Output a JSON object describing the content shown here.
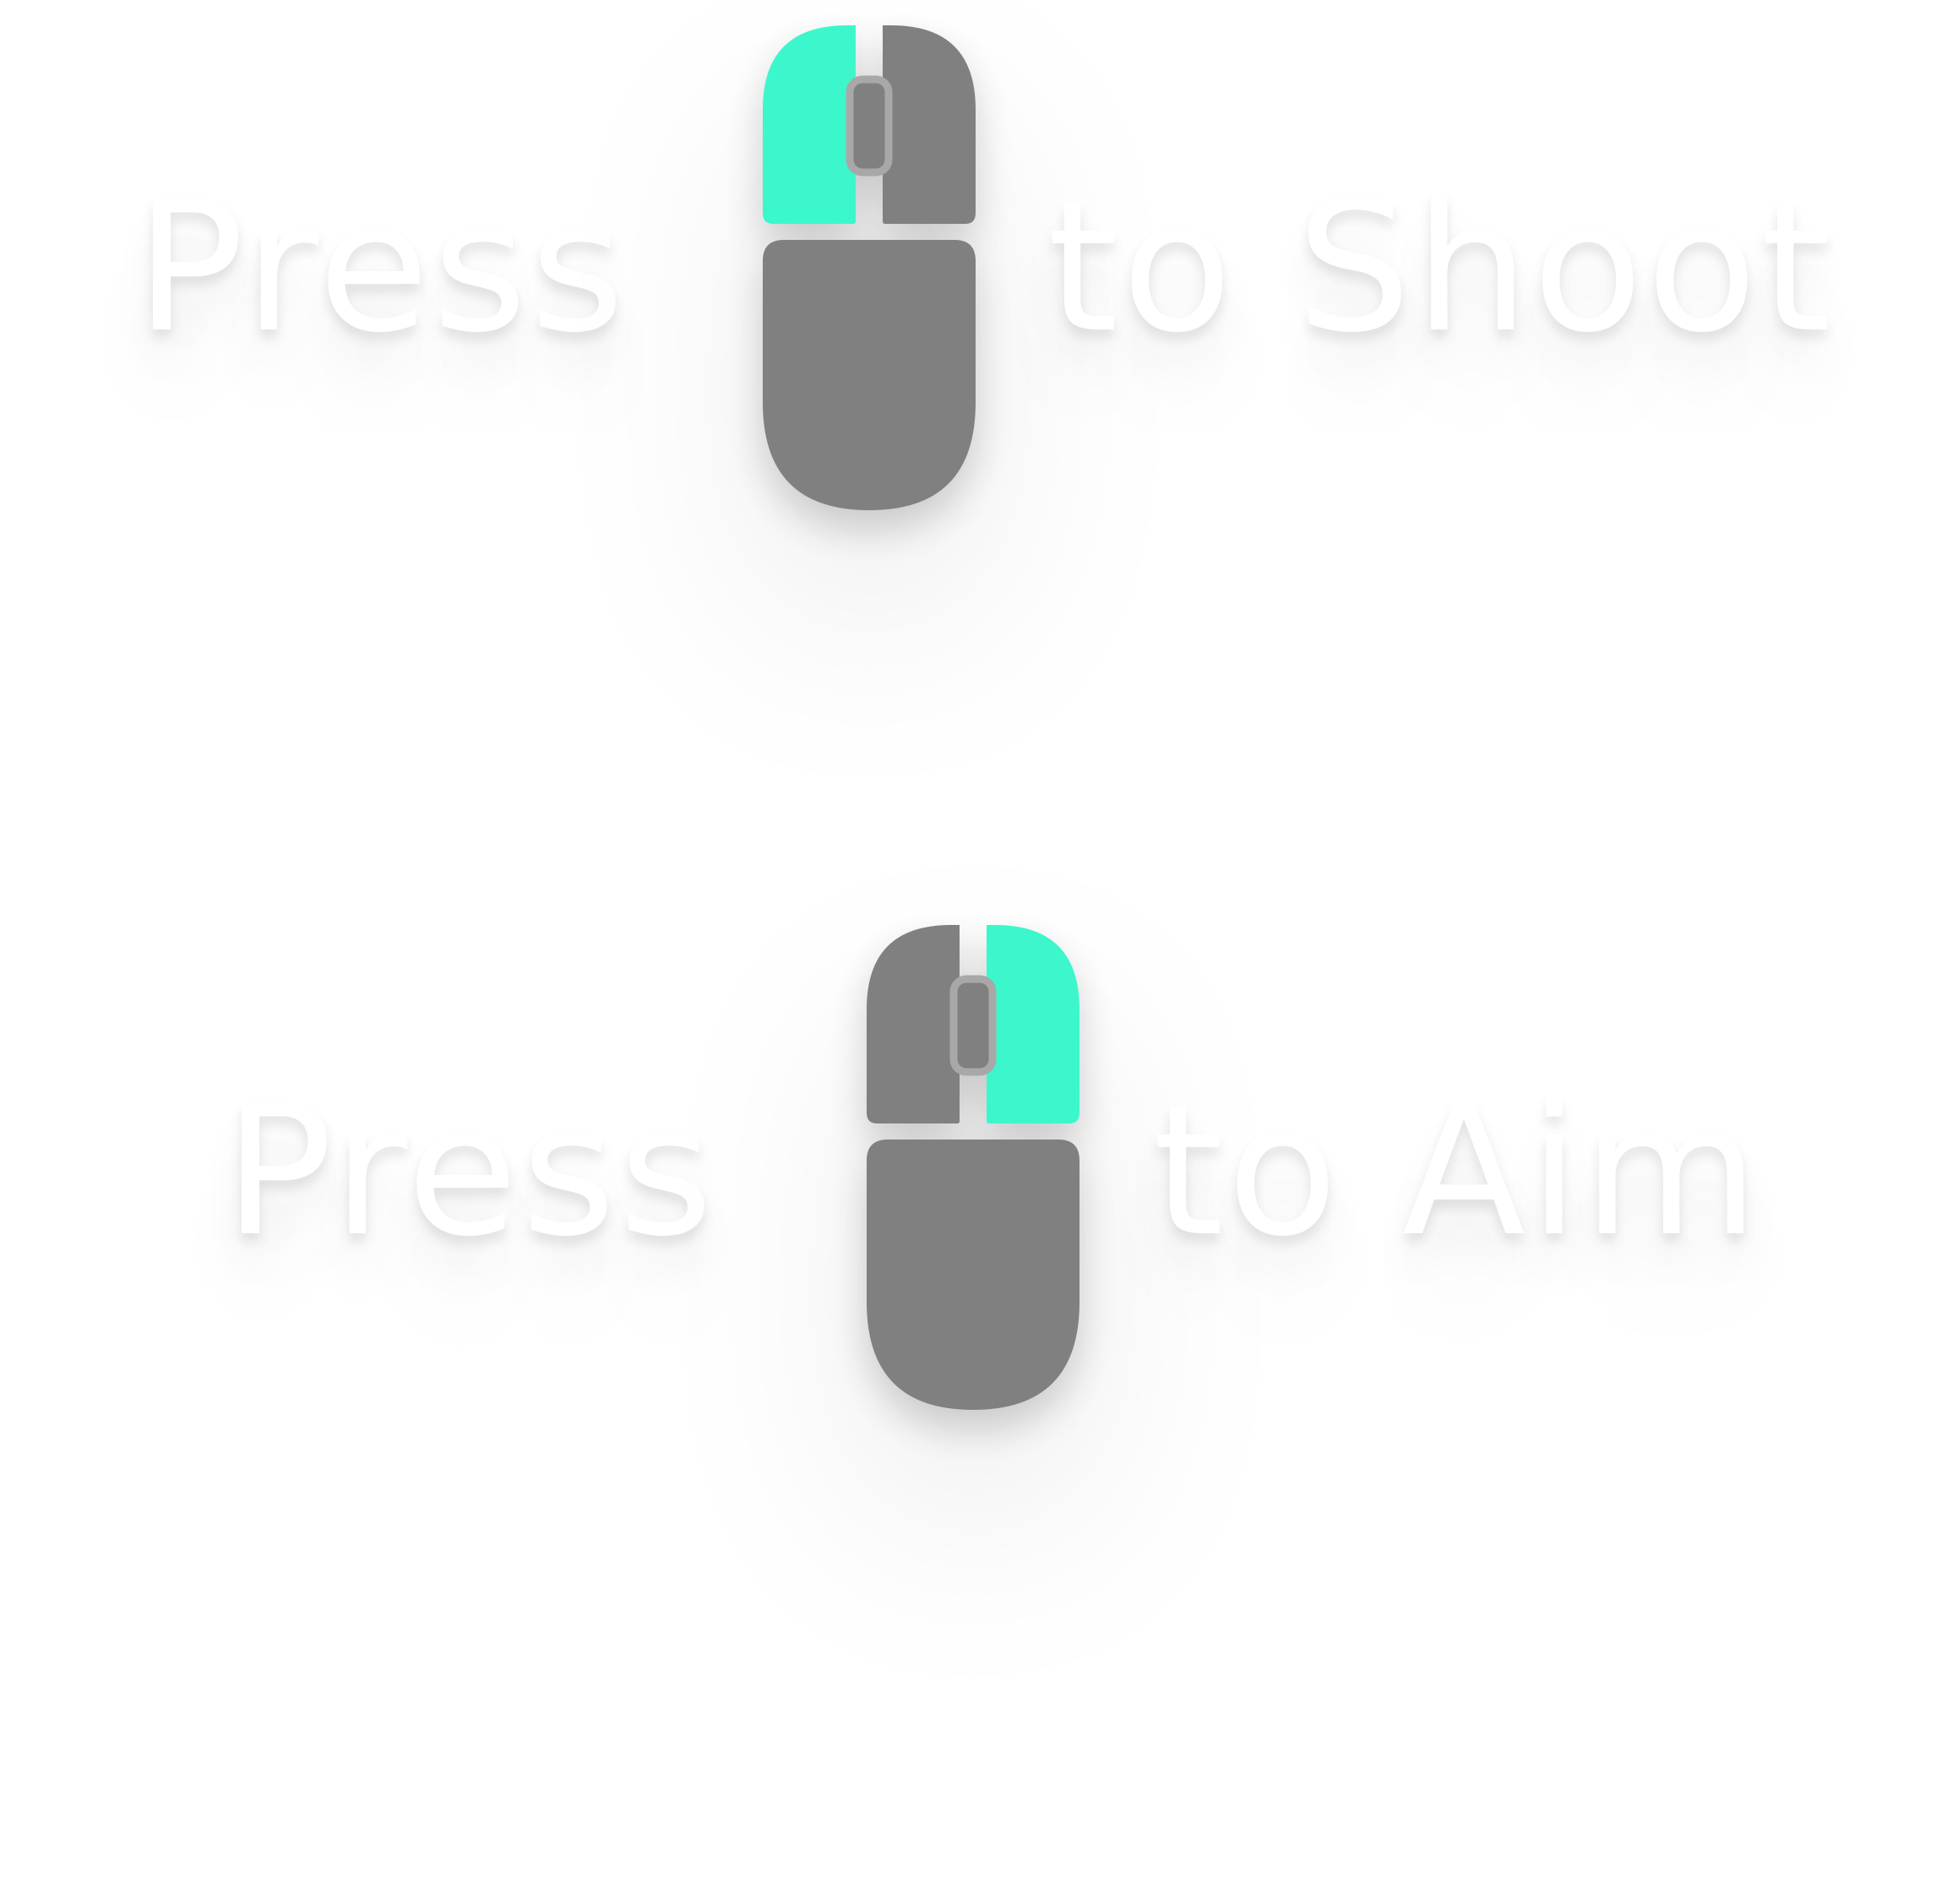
{
  "hints": [
    {
      "press_label": "Press",
      "action_label": "to Shoot",
      "mouse": {
        "icon": "mouse-left-click-icon",
        "highlighted_button": "left"
      }
    },
    {
      "press_label": "Press",
      "action_label": "to Aim",
      "mouse": {
        "icon": "mouse-right-click-icon",
        "highlighted_button": "right"
      }
    }
  ],
  "colors": {
    "highlight": "#3cf7cc",
    "mouse_body": "#808080",
    "wheel_outline": "#a8a8a8",
    "text": "#ffffff"
  }
}
